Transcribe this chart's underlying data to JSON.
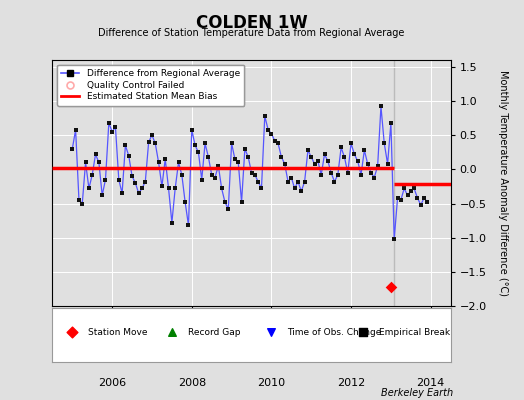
{
  "title": "COLDEN 1W",
  "subtitle": "Difference of Station Temperature Data from Regional Average",
  "ylabel": "Monthly Temperature Anomaly Difference (°C)",
  "xlim": [
    2004.5,
    2014.5
  ],
  "ylim": [
    -2.0,
    1.6
  ],
  "yticks": [
    -2.0,
    -1.5,
    -1.0,
    -0.5,
    0.0,
    0.5,
    1.0,
    1.5
  ],
  "xticks": [
    2006,
    2008,
    2010,
    2012,
    2014
  ],
  "background_color": "#e0e0e0",
  "plot_bg_color": "#e0e0e0",
  "bias_line_value_before": 0.02,
  "bias_line_value_after": -0.22,
  "break_year": 2013.08,
  "station_move_year": 2013.0,
  "station_move_value": -1.72,
  "vertical_line_x": 2013.08,
  "time_data": [
    2005.0,
    2005.083,
    2005.167,
    2005.25,
    2005.333,
    2005.417,
    2005.5,
    2005.583,
    2005.667,
    2005.75,
    2005.833,
    2005.917,
    2006.0,
    2006.083,
    2006.167,
    2006.25,
    2006.333,
    2006.417,
    2006.5,
    2006.583,
    2006.667,
    2006.75,
    2006.833,
    2006.917,
    2007.0,
    2007.083,
    2007.167,
    2007.25,
    2007.333,
    2007.417,
    2007.5,
    2007.583,
    2007.667,
    2007.75,
    2007.833,
    2007.917,
    2008.0,
    2008.083,
    2008.167,
    2008.25,
    2008.333,
    2008.417,
    2008.5,
    2008.583,
    2008.667,
    2008.75,
    2008.833,
    2008.917,
    2009.0,
    2009.083,
    2009.167,
    2009.25,
    2009.333,
    2009.417,
    2009.5,
    2009.583,
    2009.667,
    2009.75,
    2009.833,
    2009.917,
    2010.0,
    2010.083,
    2010.167,
    2010.25,
    2010.333,
    2010.417,
    2010.5,
    2010.583,
    2010.667,
    2010.75,
    2010.833,
    2010.917,
    2011.0,
    2011.083,
    2011.167,
    2011.25,
    2011.333,
    2011.417,
    2011.5,
    2011.583,
    2011.667,
    2011.75,
    2011.833,
    2011.917,
    2012.0,
    2012.083,
    2012.167,
    2012.25,
    2012.333,
    2012.417,
    2012.5,
    2012.583,
    2012.667,
    2012.75,
    2012.833,
    2012.917,
    2013.0,
    2013.083,
    2013.167,
    2013.25,
    2013.333,
    2013.417,
    2013.5,
    2013.583,
    2013.667,
    2013.75,
    2013.833,
    2013.917
  ],
  "diff_data": [
    0.3,
    0.58,
    -0.45,
    -0.5,
    0.1,
    -0.28,
    -0.08,
    0.22,
    0.1,
    -0.38,
    -0.15,
    0.68,
    0.55,
    0.62,
    -0.15,
    -0.35,
    0.35,
    0.2,
    -0.1,
    -0.2,
    -0.35,
    -0.28,
    -0.18,
    0.4,
    0.5,
    0.38,
    0.1,
    -0.25,
    0.15,
    -0.28,
    -0.78,
    -0.28,
    0.1,
    -0.08,
    -0.48,
    -0.82,
    0.58,
    0.35,
    0.25,
    -0.15,
    0.38,
    0.18,
    -0.08,
    -0.12,
    0.05,
    -0.28,
    -0.48,
    -0.58,
    0.38,
    0.15,
    0.1,
    -0.48,
    0.3,
    0.18,
    -0.05,
    -0.08,
    -0.18,
    -0.28,
    0.78,
    0.58,
    0.52,
    0.42,
    0.38,
    0.18,
    0.08,
    -0.18,
    -0.12,
    -0.28,
    -0.18,
    -0.32,
    -0.18,
    0.28,
    0.18,
    0.08,
    0.12,
    -0.08,
    0.22,
    0.12,
    -0.05,
    -0.18,
    -0.08,
    0.32,
    0.18,
    -0.05,
    0.38,
    0.22,
    0.12,
    -0.08,
    0.28,
    0.08,
    -0.05,
    -0.12,
    0.05,
    0.92,
    0.38,
    0.08,
    0.68,
    -1.02,
    -0.42,
    -0.45,
    -0.28,
    -0.38,
    -0.32,
    -0.28,
    -0.42,
    -0.52,
    -0.42,
    -0.48
  ],
  "line_color": "#5555ff",
  "dot_color": "#111111",
  "bias_color": "#ff0000",
  "vertical_line_color": "#bbbbbb",
  "footer_text": "Berkeley Earth"
}
